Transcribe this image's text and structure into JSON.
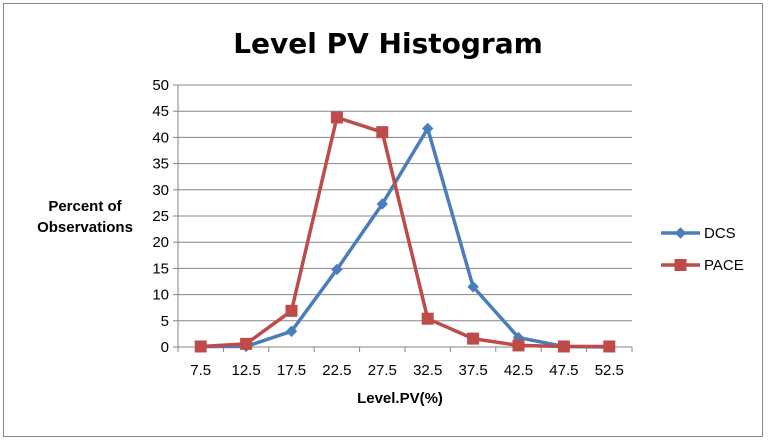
{
  "chart_data": {
    "type": "line",
    "title": "Level PV Histogram",
    "xlabel": "Level.PV(%)",
    "ylabel_lines": [
      "Percent of",
      "Observations"
    ],
    "categories": [
      "7.5",
      "12.5",
      "17.5",
      "22.5",
      "27.5",
      "32.5",
      "37.5",
      "42.5",
      "47.5",
      "52.5"
    ],
    "ylim": [
      0,
      50
    ],
    "yticks": [
      "0",
      "5",
      "10",
      "15",
      "20",
      "25",
      "30",
      "35",
      "40",
      "45",
      "50"
    ],
    "grid": true,
    "legend_position": "right",
    "series": [
      {
        "name": "DCS",
        "color": "#4a7ebb",
        "marker": "diamond",
        "values": [
          0.1,
          0.1,
          3.0,
          14.8,
          27.3,
          41.7,
          11.5,
          1.8,
          0.1,
          0.0
        ]
      },
      {
        "name": "PACE",
        "color": "#be4b48",
        "marker": "square",
        "values": [
          0.1,
          0.6,
          6.9,
          43.8,
          41.0,
          5.4,
          1.6,
          0.3,
          0.1,
          0.1
        ]
      }
    ]
  }
}
